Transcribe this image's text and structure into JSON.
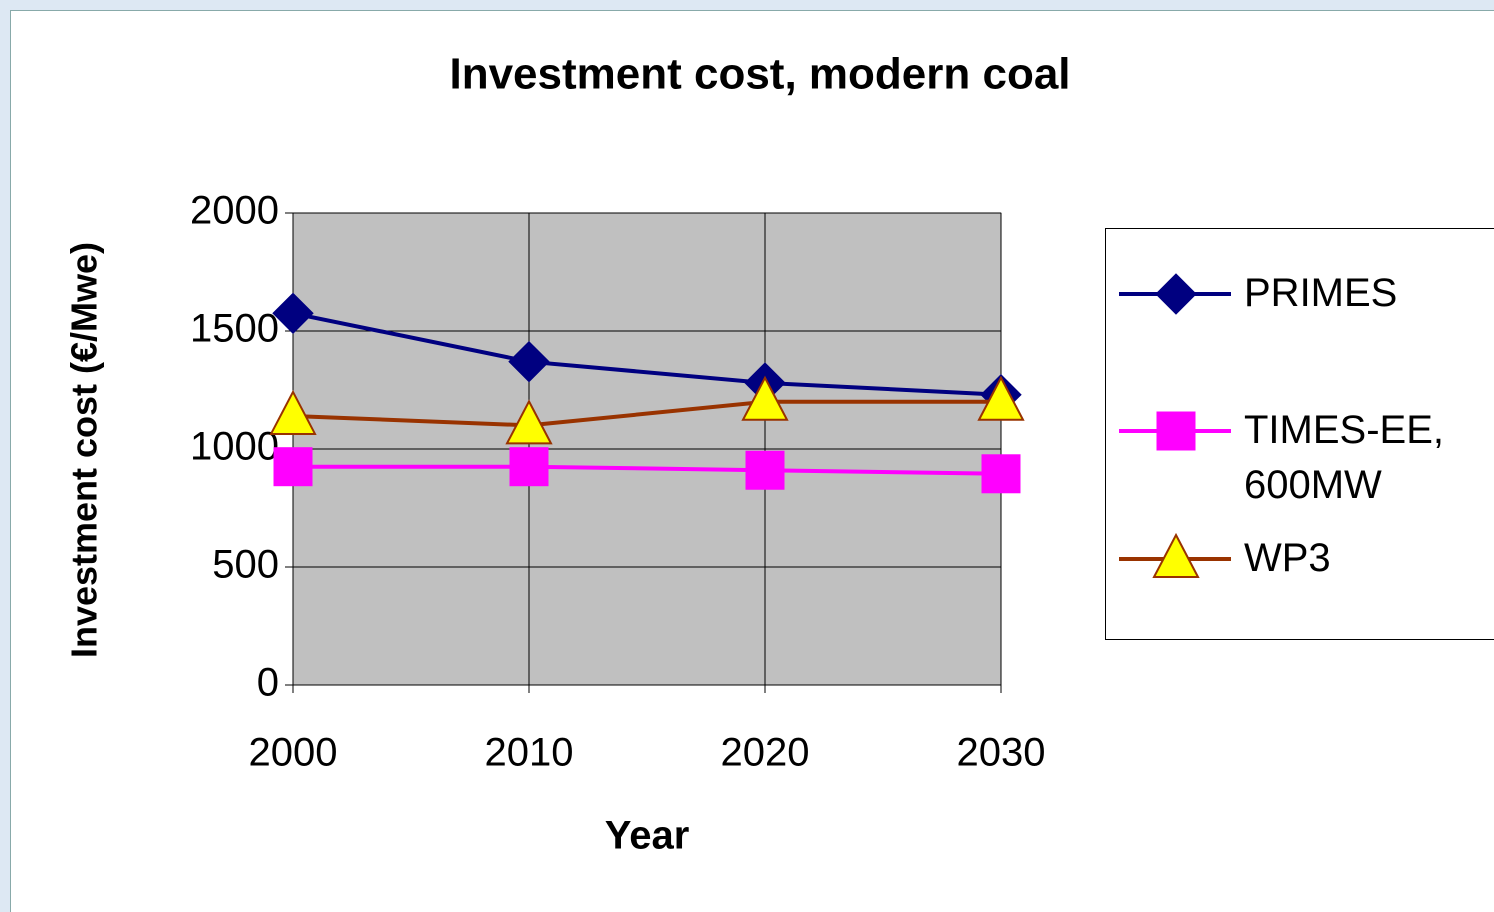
{
  "chart_data": {
    "type": "line",
    "title": "Investment cost, modern coal",
    "x_label": "Year",
    "y_label": "Investment cost (€/Mwe)",
    "x": [
      2000,
      2010,
      2020,
      2030
    ],
    "xlim": [
      2000,
      2030
    ],
    "xticks": [
      2000,
      2010,
      2020,
      2030
    ],
    "ylim": [
      0,
      2000
    ],
    "yticks": [
      0,
      500,
      1000,
      1500,
      2000
    ],
    "grid": true,
    "legend": "right",
    "series": [
      {
        "name": "PRIMES",
        "color": "#000080",
        "marker": "diamond",
        "values": [
          1575,
          1370,
          1280,
          1230
        ]
      },
      {
        "name": "TIMES-EE, 600MW",
        "color": "#ff00ff",
        "marker": "square",
        "values": [
          925,
          925,
          910,
          895
        ]
      },
      {
        "name": "WP3",
        "color": "#993300",
        "marker": "triangle",
        "values": [
          1140,
          1100,
          1200,
          1200
        ]
      }
    ]
  }
}
